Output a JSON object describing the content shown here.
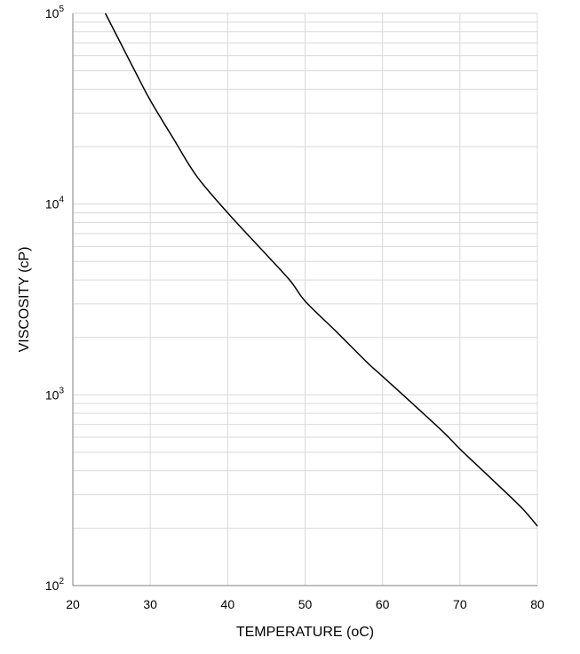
{
  "chart_data": {
    "type": "line",
    "title": "",
    "xlabel": "TEMPERATURE (oC)",
    "ylabel": "VISCOSITY (cP)",
    "x_scale": "linear",
    "y_scale": "log",
    "xlim": [
      20,
      80
    ],
    "ylim": [
      100,
      100000
    ],
    "x_ticks": [
      20,
      30,
      40,
      50,
      60,
      70,
      80
    ],
    "y_ticks": [
      {
        "value": 100,
        "base": "10",
        "exp": "2"
      },
      {
        "value": 1000,
        "base": "10",
        "exp": "3"
      },
      {
        "value": 10000,
        "base": "10",
        "exp": "4"
      },
      {
        "value": 100000,
        "base": "10",
        "exp": "5"
      }
    ],
    "grid": true,
    "legend": "none",
    "series": [
      {
        "color": "#000000",
        "x": [
          24.2,
          26,
          28,
          30,
          33,
          36,
          40,
          44,
          48,
          50,
          54,
          58,
          60,
          64,
          68,
          70,
          74,
          78,
          80
        ],
        "y": [
          100000,
          72000,
          50000,
          35000,
          22000,
          14000,
          9000,
          6000,
          4000,
          3100,
          2150,
          1480,
          1250,
          890,
          630,
          520,
          365,
          255,
          205
        ]
      }
    ],
    "colors": {
      "grid": "#d9d9d9",
      "axis": "#808080",
      "line": "#000000"
    }
  }
}
